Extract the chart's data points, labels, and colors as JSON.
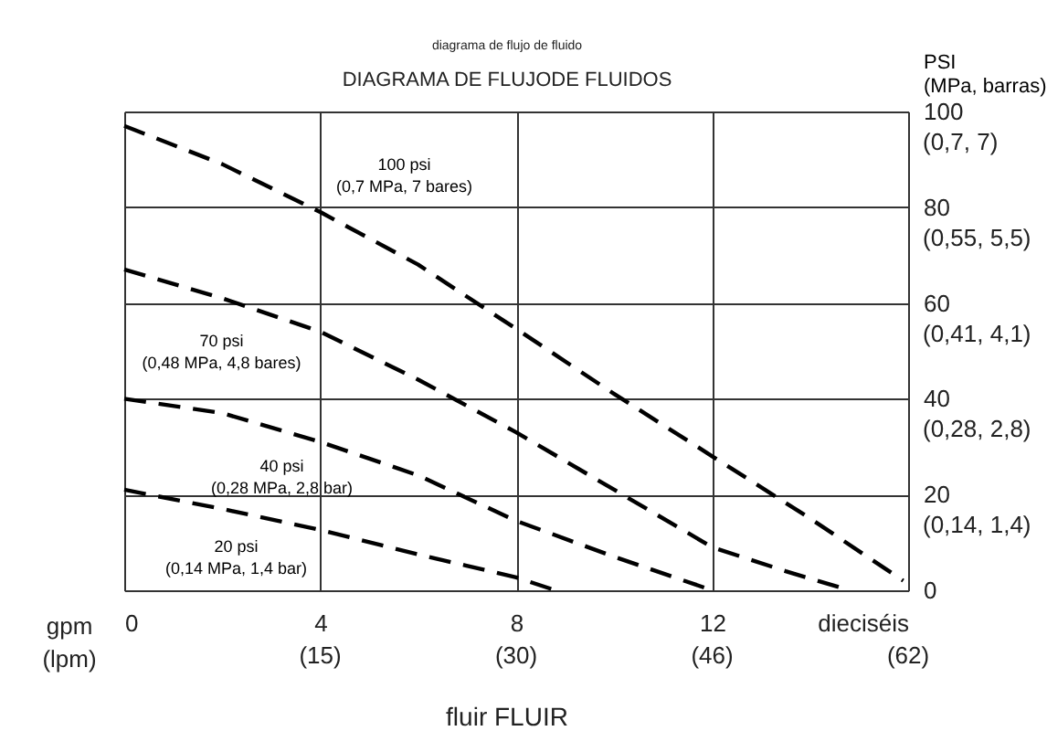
{
  "chart_data": {
    "type": "line",
    "title": "DIAGRAMA DE FLUJODE FLUIDOS",
    "subtitle": "diagrama de flujo de fluido",
    "xlabel": "fluir FLUIR",
    "ylabel": "PSI\n(MPa, barras)",
    "xlim": [
      0,
      16
    ],
    "xticks": [
      0,
      4,
      8,
      12,
      {
        "value": 16,
        "label": "dieciséis"
      }
    ],
    "ylim": [
      0,
      100
    ],
    "yticks": [
      0,
      20,
      40,
      60,
      80,
      100
    ],
    "grid": true,
    "line_style": "dashed",
    "marker": "none",
    "series": [
      {
        "name": "100 psi\n(0,7 MPa, 7 bares)",
        "color": "#000000",
        "x": [
          0,
          2,
          4,
          6,
          8,
          10,
          12,
          14,
          15.9
        ],
        "values": [
          97,
          89,
          79,
          68,
          54.6,
          41,
          28,
          15,
          2
        ]
      },
      {
        "name": "70 psi\n(0,48 MPa, 4,8 bares)",
        "color": "#000000",
        "x": [
          0,
          2,
          4,
          6,
          8,
          10,
          12,
          13.5,
          14.8
        ],
        "values": [
          67,
          61,
          54,
          44,
          33,
          21,
          9,
          4,
          0
        ]
      },
      {
        "name": "40 psi\n(0,28 MPa, 2,8 bar)",
        "color": "#000000",
        "x": [
          0,
          2,
          4,
          6,
          8,
          10,
          12
        ],
        "values": [
          40,
          37,
          31,
          24,
          14.5,
          7,
          0
        ]
      },
      {
        "name": "20 psi\n(0,14 MPa, 1,4 bar)",
        "color": "#000000",
        "x": [
          0,
          2,
          4,
          6,
          8,
          8.8
        ],
        "values": [
          21,
          17,
          12.6,
          7.5,
          2.7,
          0
        ]
      }
    ],
    "annotations": [
      "(15)",
      "(30)",
      "(46)",
      "(62)",
      "(0,14, 1,4)",
      "(0,28, 2,8)",
      "(0,41, 4,1)",
      "(0,55, 5,5)",
      "(0,7, 7)",
      "gpm\n(lpm)"
    ]
  }
}
